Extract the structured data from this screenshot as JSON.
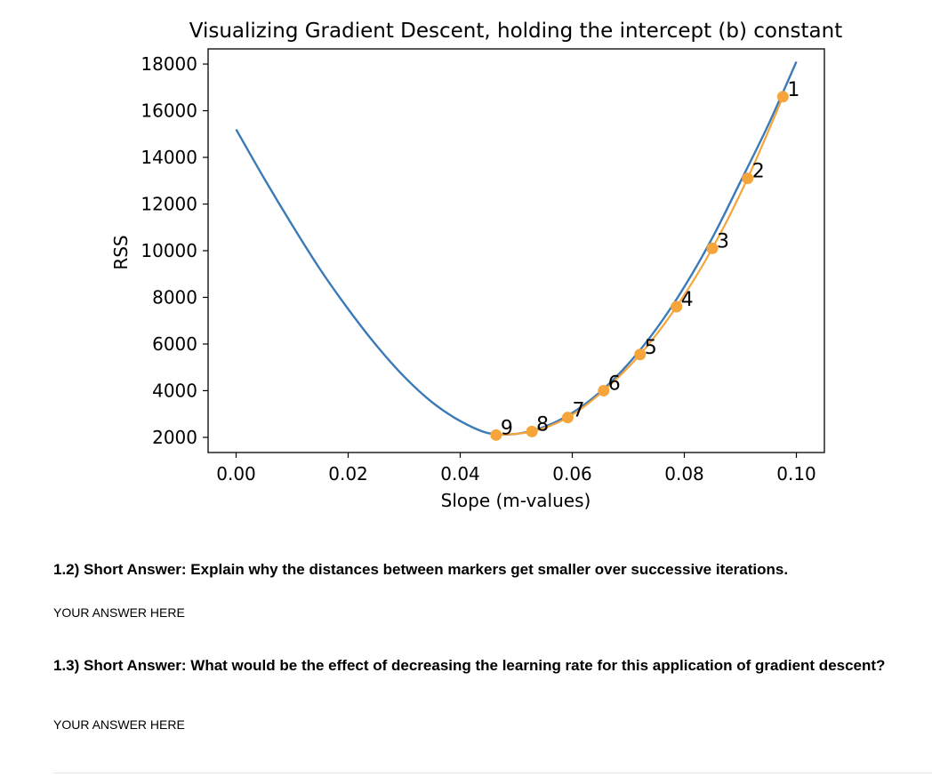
{
  "chart_data": {
    "type": "line",
    "title": "Visualizing Gradient Descent, holding the intercept (b) constant",
    "xlabel": "Slope (m-values)",
    "ylabel": "RSS",
    "xlim": [
      -0.005,
      0.105
    ],
    "ylim": [
      1350,
      18650
    ],
    "x_ticks": [
      "0.00",
      "0.02",
      "0.04",
      "0.06",
      "0.08",
      "0.10"
    ],
    "y_ticks": [
      "2000",
      "4000",
      "6000",
      "8000",
      "10000",
      "12000",
      "14000",
      "16000",
      "18000"
    ],
    "grid": false,
    "legend": "none",
    "series": [
      {
        "style": "line",
        "color": "#3a7ab8",
        "x": [
          0.0,
          0.005,
          0.01,
          0.015,
          0.02,
          0.025,
          0.03,
          0.035,
          0.04,
          0.045,
          0.05,
          0.055,
          0.06,
          0.065,
          0.07,
          0.075,
          0.08,
          0.085,
          0.09,
          0.095,
          0.1
        ],
        "y": [
          15200,
          13100,
          11100,
          9200,
          7500,
          5950,
          4600,
          3500,
          2700,
          2180,
          2150,
          2450,
          3050,
          3950,
          5150,
          6650,
          8450,
          10550,
          12950,
          15400,
          18100
        ]
      },
      {
        "style": "line+markers",
        "color": "#f5a53a",
        "x": [
          0.0976,
          0.0913,
          0.085,
          0.0786,
          0.0721,
          0.0656,
          0.0592,
          0.0528,
          0.0464
        ],
        "y": [
          16600,
          13100,
          10100,
          7600,
          5550,
          4000,
          2850,
          2250,
          2100
        ],
        "labels": [
          "1",
          "2",
          "3",
          "4",
          "5",
          "6",
          "7",
          "8",
          "9"
        ]
      }
    ]
  },
  "questions": [
    {
      "prompt": "1.2) Short Answer: Explain why the distances between markers get smaller over successive iterations.",
      "answer": "YOUR ANSWER HERE"
    },
    {
      "prompt": "1.3) Short Answer: What would be the effect of decreasing the learning rate for this application of gradient descent?",
      "answer": "YOUR ANSWER HERE"
    }
  ]
}
